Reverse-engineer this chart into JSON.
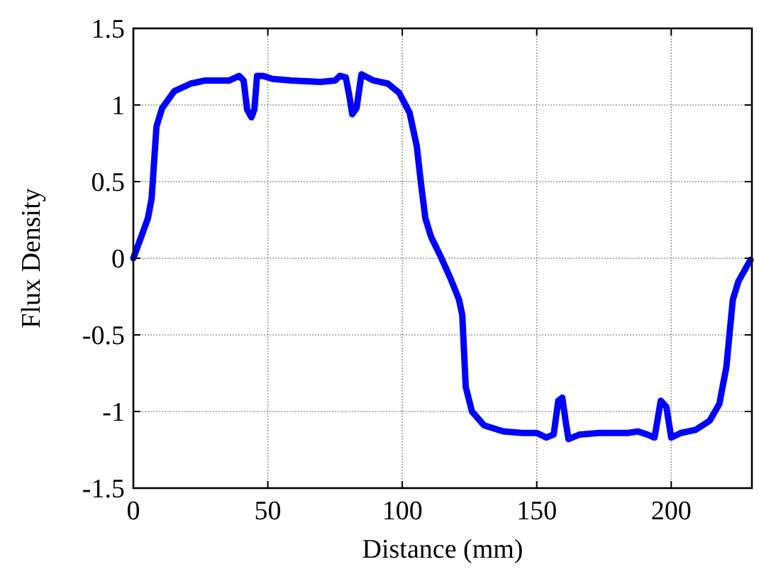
{
  "chart_data": {
    "type": "line",
    "xlabel": "Distance (mm)",
    "ylabel": "Flux Density",
    "xlim": [
      0,
      230
    ],
    "ylim": [
      -1.5,
      1.5
    ],
    "xticks": [
      0,
      50,
      100,
      150,
      200
    ],
    "yticks": [
      -1.5,
      -1,
      -0.5,
      0,
      0.5,
      1,
      1.5
    ],
    "grid": true,
    "marker": "none",
    "line_style": "solid",
    "x": [
      0,
      5.4,
      6.8,
      8.6,
      10.7,
      15.2,
      21.4,
      26.8,
      35.7,
      39.3,
      41,
      42.3,
      43.9,
      45,
      46,
      48.2,
      51.8,
      58.9,
      69.6,
      75,
      76.8,
      79,
      80.4,
      81.4,
      83,
      84.8,
      89.3,
      94.6,
      98.8,
      102.7,
      105.4,
      107,
      108.6,
      110.7,
      114.3,
      117.9,
      121.1,
      122.3,
      123.6,
      125.9,
      130.4,
      137.5,
      144.6,
      150,
      153.6,
      156.3,
      158,
      159.5,
      160.7,
      161.8,
      166,
      173.2,
      183.9,
      187.5,
      191,
      193.8,
      196.1,
      198.2,
      200,
      203.6,
      209,
      214.3,
      217.9,
      220.5,
      222.9,
      225,
      229.5
    ],
    "series": [
      {
        "color": "#0000ff",
        "values": [
          0,
          0.26,
          0.39,
          0.86,
          0.98,
          1.09,
          1.14,
          1.16,
          1.16,
          1.19,
          1.16,
          0.97,
          0.92,
          0.97,
          1.19,
          1.19,
          1.17,
          1.16,
          1.15,
          1.16,
          1.19,
          1.18,
          1.05,
          0.94,
          0.98,
          1.2,
          1.16,
          1.14,
          1.08,
          0.95,
          0.73,
          0.48,
          0.26,
          0.14,
          0.01,
          -0.13,
          -0.27,
          -0.37,
          -0.84,
          -1,
          -1.09,
          -1.13,
          -1.14,
          -1.14,
          -1.17,
          -1.15,
          -0.93,
          -0.91,
          -1.06,
          -1.18,
          -1.15,
          -1.14,
          -1.14,
          -1.13,
          -1.15,
          -1.17,
          -0.93,
          -0.97,
          -1.17,
          -1.14,
          -1.12,
          -1.06,
          -0.95,
          -0.71,
          -0.27,
          -0.15,
          -0.01
        ]
      }
    ]
  }
}
